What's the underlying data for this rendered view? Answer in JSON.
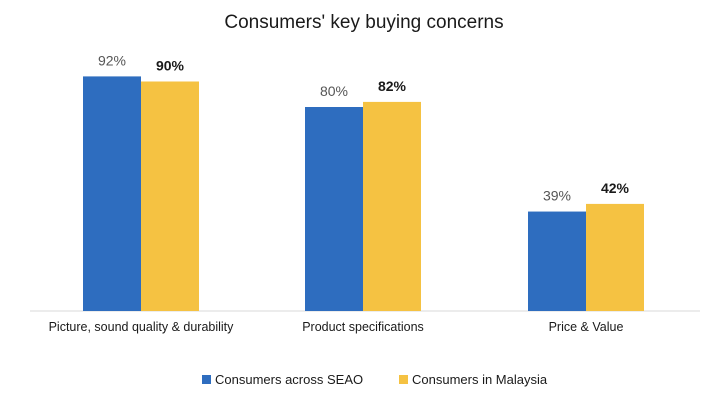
{
  "chart_data": {
    "type": "bar",
    "title": "Consumers' key buying concerns",
    "categories": [
      "Picture, sound quality & durability",
      "Product specifications",
      "Price & Value"
    ],
    "series": [
      {
        "name": "Consumers across SEAO",
        "values": [
          92,
          80,
          39
        ],
        "labels": [
          "92%",
          "80%",
          "39%"
        ],
        "color": "#2E6DBF"
      },
      {
        "name": "Consumers in Malaysia",
        "values": [
          90,
          82,
          42
        ],
        "labels": [
          "90%",
          "82%",
          "42%"
        ],
        "color": "#F5C242"
      }
    ],
    "xlabel": "",
    "ylabel": "",
    "ylim": [
      0,
      100
    ],
    "grid": false,
    "legend": "bottom"
  }
}
